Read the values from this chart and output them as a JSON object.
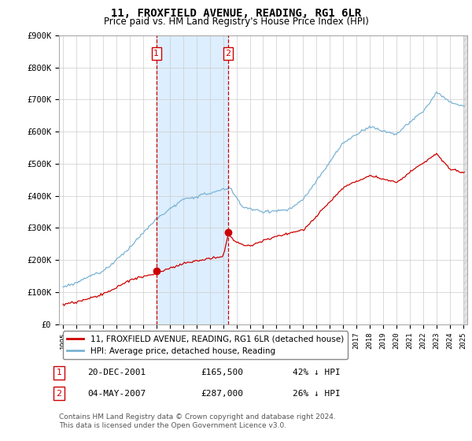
{
  "title": "11, FROXFIELD AVENUE, READING, RG1 6LR",
  "subtitle": "Price paid vs. HM Land Registry's House Price Index (HPI)",
  "ylim": [
    0,
    900000
  ],
  "yticks": [
    0,
    100000,
    200000,
    300000,
    400000,
    500000,
    600000,
    700000,
    800000,
    900000
  ],
  "ytick_labels": [
    "£0",
    "£100K",
    "£200K",
    "£300K",
    "£400K",
    "£500K",
    "£600K",
    "£700K",
    "£800K",
    "£900K"
  ],
  "hpi_color": "#7ab3d4",
  "price_color": "#cc0000",
  "sale1_date": 2002.0,
  "sale1_price": 165500,
  "sale1_label": "1",
  "sale2_date": 2007.37,
  "sale2_price": 287000,
  "sale2_label": "2",
  "annotation1_date": "20-DEC-2001",
  "annotation1_price": "£165,500",
  "annotation1_hpi": "42% ↓ HPI",
  "annotation2_date": "04-MAY-2007",
  "annotation2_price": "£287,000",
  "annotation2_hpi": "26% ↓ HPI",
  "legend_label1": "11, FROXFIELD AVENUE, READING, RG1 6LR (detached house)",
  "legend_label2": "HPI: Average price, detached house, Reading",
  "footnote": "Contains HM Land Registry data © Crown copyright and database right 2024.\nThis data is licensed under the Open Government Licence v3.0.",
  "background_color": "#ffffff",
  "plot_bg_color": "#ffffff",
  "grid_color": "#cccccc",
  "shade_color": "#ddeeff",
  "xlim_left": 1994.7,
  "xlim_right": 2025.3
}
